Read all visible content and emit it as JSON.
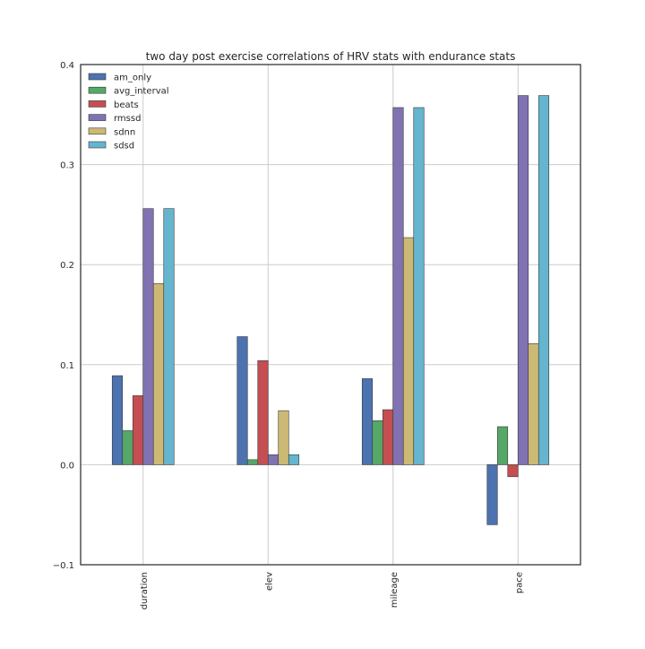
{
  "chart_data": {
    "type": "bar",
    "title": "two day post exercise correlations of HRV stats with endurance stats",
    "xlabel": "",
    "ylabel": "",
    "categories": [
      "duration",
      "elev",
      "mileage",
      "pace"
    ],
    "ylim": [
      -0.1,
      0.4
    ],
    "yticks": [
      -0.1,
      0.0,
      0.1,
      0.2,
      0.3,
      0.4
    ],
    "ytick_labels": [
      "−0.1",
      "0.0",
      "0.1",
      "0.2",
      "0.3",
      "0.4"
    ],
    "grid": true,
    "legend_position": "top-left",
    "series": [
      {
        "name": "am_only",
        "color": "#4C72B0",
        "values": [
          0.089,
          0.128,
          0.086,
          -0.06
        ]
      },
      {
        "name": "avg_interval",
        "color": "#55A868",
        "values": [
          0.034,
          0.005,
          0.044,
          0.038
        ]
      },
      {
        "name": "beats",
        "color": "#C44E52",
        "values": [
          0.069,
          0.104,
          0.055,
          -0.012
        ]
      },
      {
        "name": "rmssd",
        "color": "#8172B2",
        "values": [
          0.256,
          0.01,
          0.357,
          0.369
        ]
      },
      {
        "name": "sdnn",
        "color": "#CCB974",
        "values": [
          0.181,
          0.054,
          0.227,
          0.121
        ]
      },
      {
        "name": "sdsd",
        "color": "#64B5CD",
        "values": [
          0.256,
          0.01,
          0.357,
          0.369
        ]
      }
    ]
  }
}
